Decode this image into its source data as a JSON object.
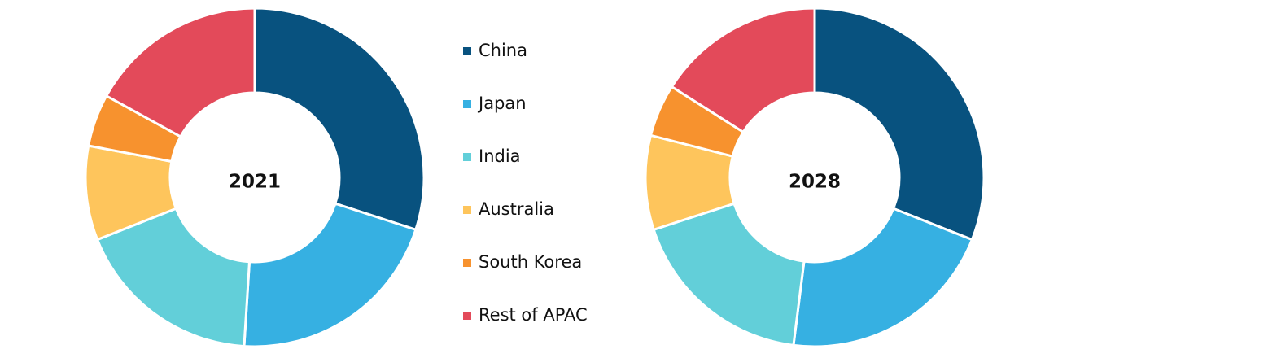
{
  "chart_data": [
    {
      "type": "donut",
      "title": "2021",
      "categories": [
        "China",
        "Japan",
        "India",
        "Australia",
        "South Korea",
        "Rest of APAC"
      ],
      "values": [
        30,
        21,
        18,
        9,
        5,
        17
      ],
      "colors": [
        "#08527f",
        "#36b0e2",
        "#62cfd9",
        "#fec55c",
        "#f7922e",
        "#e34a5a"
      ]
    },
    {
      "type": "donut",
      "title": "2028",
      "categories": [
        "China",
        "Japan",
        "India",
        "Australia",
        "South Korea",
        "Rest of APAC"
      ],
      "values": [
        31,
        21,
        18,
        9,
        5,
        16
      ],
      "colors": [
        "#08527f",
        "#36b0e2",
        "#62cfd9",
        "#fec55c",
        "#f7922e",
        "#e34a5a"
      ]
    }
  ]
}
